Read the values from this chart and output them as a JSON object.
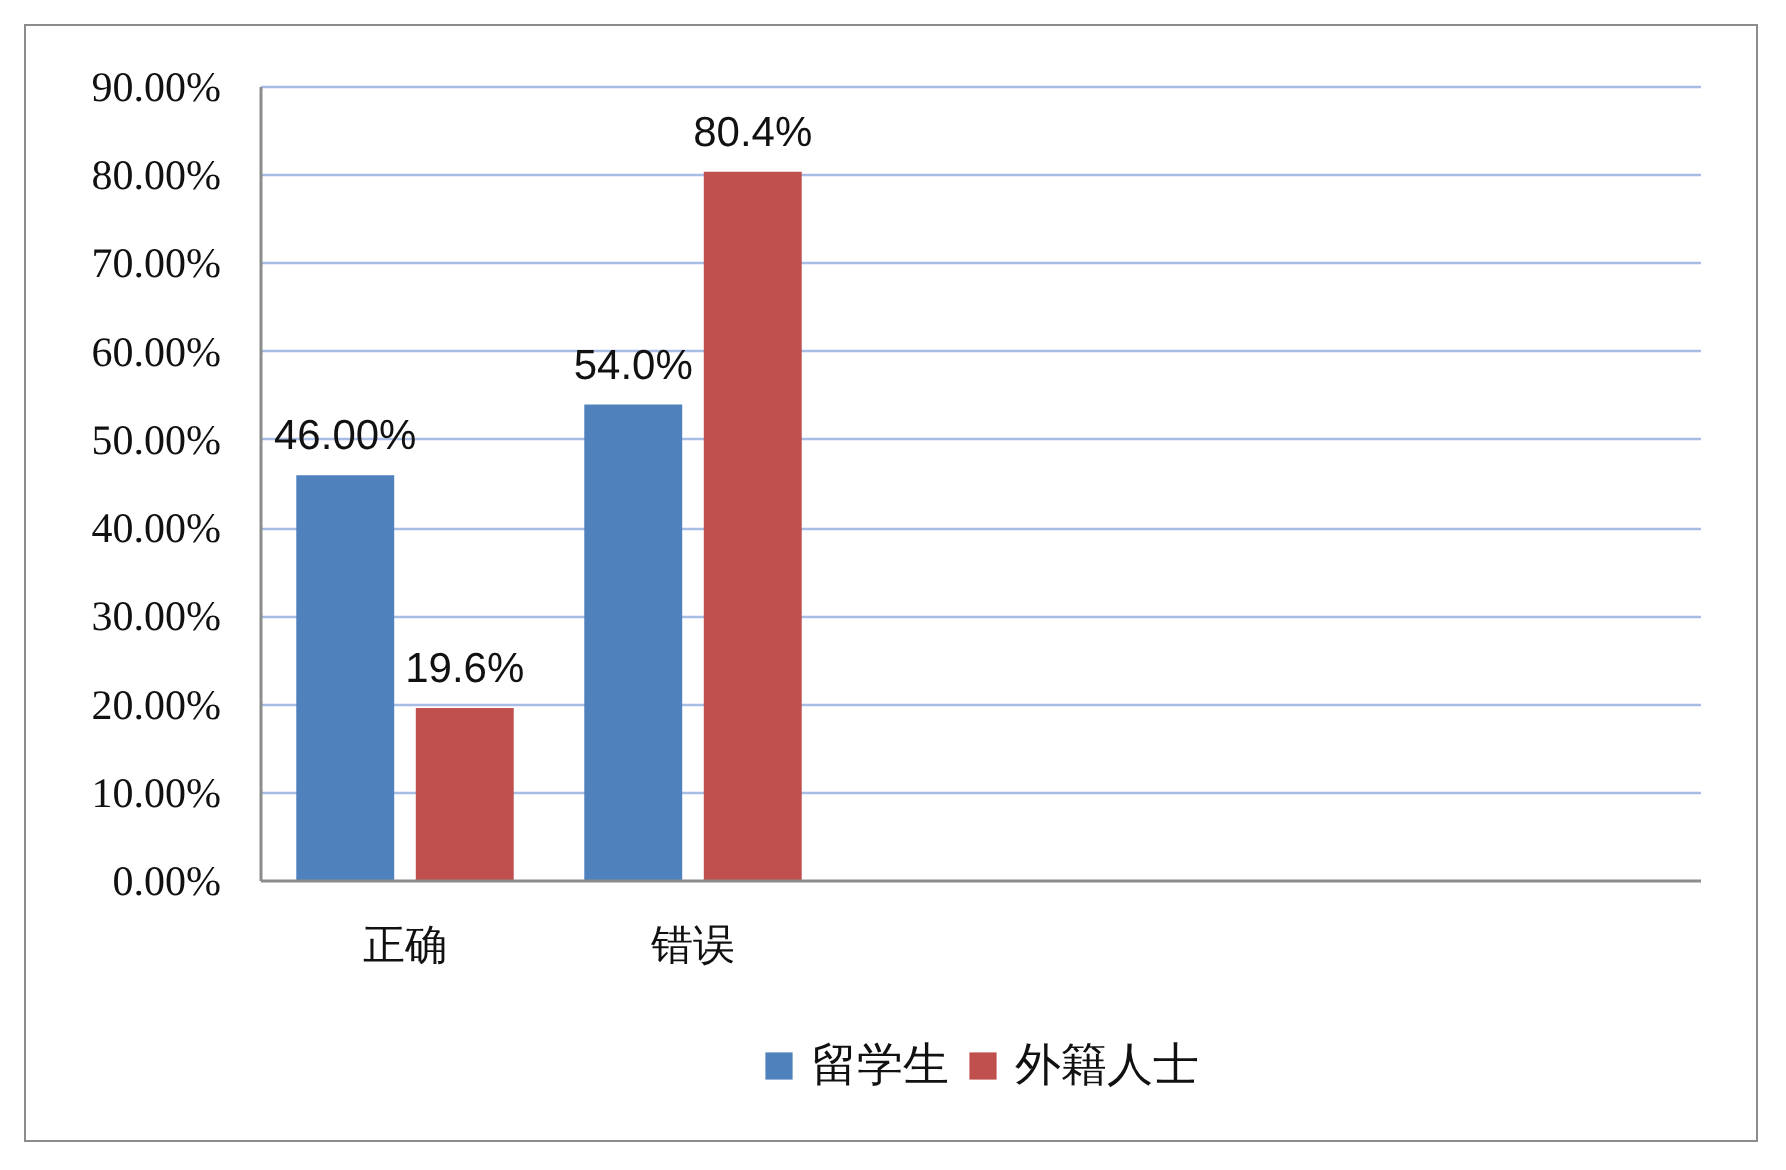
{
  "chart_data": {
    "type": "bar",
    "categories": [
      "正确",
      "错误",
      null,
      null,
      null
    ],
    "series": [
      {
        "name": "留学生",
        "color": "#4f81bd",
        "values": [
          46,
          54,
          null,
          null,
          null
        ],
        "value_labels": [
          "46.00%",
          "54.0%",
          null,
          null,
          null
        ]
      },
      {
        "name": "外籍人士",
        "color": "#c0504d",
        "values": [
          19.6,
          80.4,
          null,
          null,
          null
        ],
        "value_labels": [
          "19.6%",
          "80.4%",
          null,
          null,
          null
        ]
      }
    ],
    "ylim": [
      0,
      90
    ],
    "yticks": [
      {
        "value": 0,
        "label": "0.00%"
      },
      {
        "value": 10,
        "label": "10.00%"
      },
      {
        "value": 20,
        "label": "20.00%"
      },
      {
        "value": 30,
        "label": "30.00%"
      },
      {
        "value": 40,
        "label": "40.00%"
      },
      {
        "value": 50,
        "label": "50.00%"
      },
      {
        "value": 60,
        "label": "60.00%"
      },
      {
        "value": 70,
        "label": "70.00%"
      },
      {
        "value": 80,
        "label": "80.00%"
      },
      {
        "value": 90,
        "label": "90.00%"
      }
    ],
    "grid": "y",
    "legend": "bottom"
  }
}
